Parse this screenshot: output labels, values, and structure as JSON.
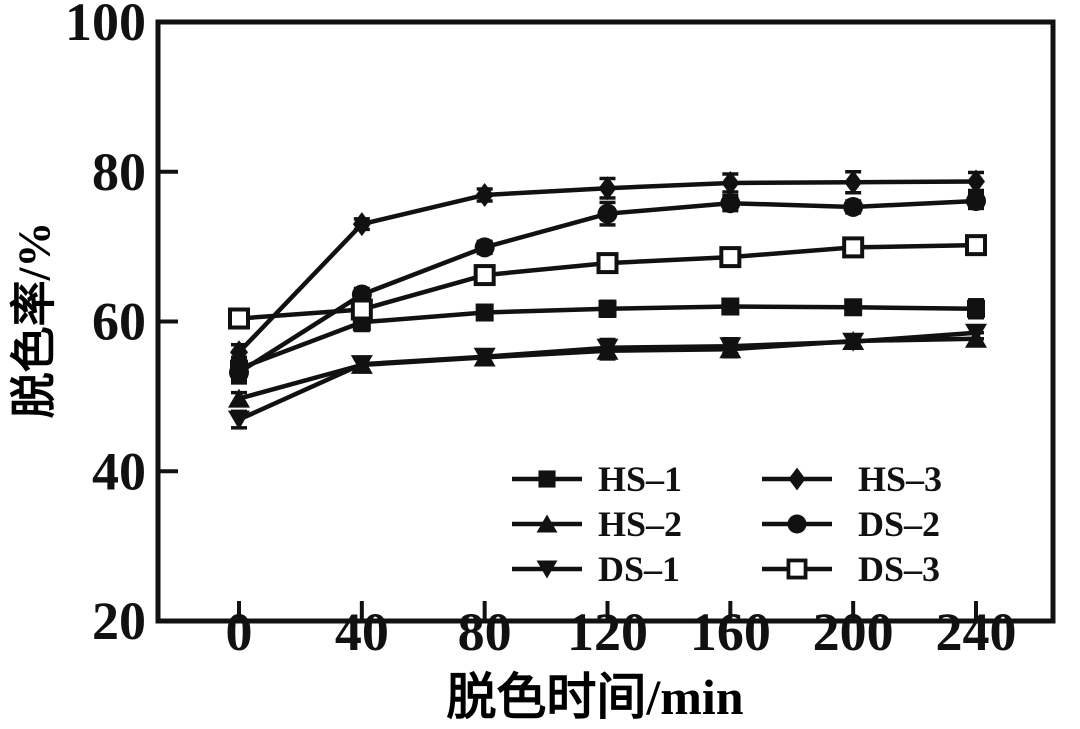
{
  "chart_data": {
    "type": "line",
    "title": "",
    "xlabel": "脱色时间/min",
    "ylabel": "脱色率/%",
    "x": [
      0,
      40,
      80,
      120,
      160,
      200,
      240
    ],
    "xticks": [
      0,
      40,
      80,
      120,
      160,
      200,
      240
    ],
    "yticks": [
      20,
      40,
      60,
      80,
      100
    ],
    "xlim": [
      -26,
      265
    ],
    "ylim": [
      20,
      100
    ],
    "grid": false,
    "error_bars": true,
    "legend_position": "inside-bottom-center-right, two columns, no frame",
    "color": "#111111",
    "background": "#ffffff",
    "series": [
      {
        "name": "HS–1",
        "marker": "filled-square",
        "values": [
          53.7,
          59.9,
          61.2,
          61.7,
          62.0,
          61.9,
          61.7
        ],
        "errors": [
          1.5,
          1.1,
          0.8,
          1.0,
          0.8,
          0.8,
          1.2
        ]
      },
      {
        "name": "HS–2",
        "marker": "filled-triangle-up",
        "values": [
          49.7,
          54.2,
          55.2,
          56.1,
          56.3,
          57.4,
          57.7
        ],
        "errors": [
          0.8,
          0.8,
          0.8,
          1.1,
          1.0,
          0.8,
          0.8
        ]
      },
      {
        "name": "DS–1",
        "marker": "filled-triangle-down",
        "values": [
          46.9,
          54.3,
          55.3,
          56.5,
          56.7,
          57.3,
          58.5
        ],
        "errors": [
          1.1,
          0.8,
          0.8,
          1.1,
          1.0,
          0.8,
          0.8
        ]
      },
      {
        "name": "HS–3",
        "marker": "filled-diamond",
        "values": [
          55.9,
          73.0,
          76.9,
          77.8,
          78.5,
          78.6,
          78.7
        ],
        "errors": [
          1.0,
          0.7,
          0.8,
          1.3,
          1.2,
          1.4,
          1.2
        ]
      },
      {
        "name": "DS–2",
        "marker": "filled-circle",
        "values": [
          53.2,
          63.6,
          69.9,
          74.4,
          75.8,
          75.3,
          76.1
        ],
        "errors": [
          1.4,
          0.8,
          0.8,
          1.5,
          1.0,
          0.8,
          1.0
        ]
      },
      {
        "name": "DS–3",
        "marker": "open-square",
        "values": [
          60.4,
          61.6,
          66.2,
          67.8,
          68.6,
          69.9,
          70.2
        ],
        "errors": [
          0.9,
          0.8,
          0.9,
          0.8,
          0.9,
          0.8,
          0.9
        ]
      }
    ],
    "legend_columns": [
      [
        "HS–1",
        "HS–2",
        "DS–1"
      ],
      [
        "HS–3",
        "DS–2",
        "DS–3"
      ]
    ]
  }
}
